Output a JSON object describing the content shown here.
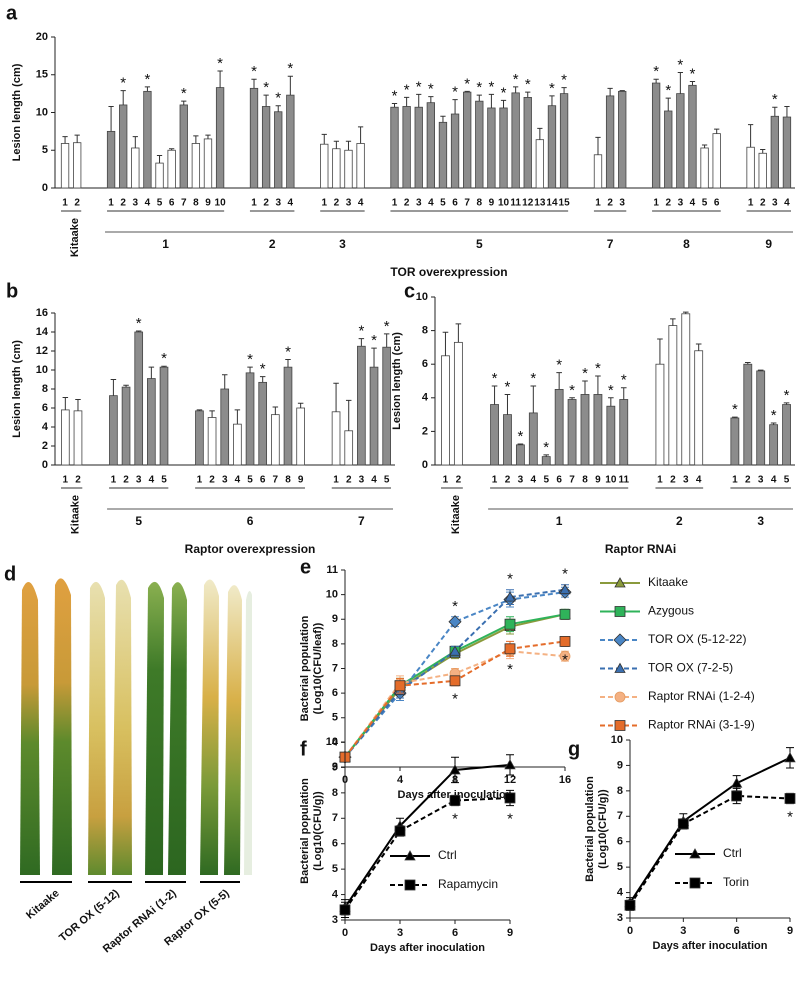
{
  "photo": {
    "panel": "d",
    "labels": [
      "Kitaake",
      "TOR OX (5-12)",
      "Raptor RNAi (1-2)",
      "Raptor OX (5-5)"
    ]
  },
  "chart_data": [
    {
      "type": "bar",
      "panel": "a",
      "ylabel": "Lesion length (cm)",
      "ylim": [
        0,
        20
      ],
      "yticks": [
        0,
        5,
        10,
        15,
        20
      ],
      "group_axis_label": "TOR overexpression",
      "groups": [
        {
          "name": "Kitaake",
          "categories": [
            "1",
            "2"
          ],
          "values": [
            5.9,
            6.0
          ],
          "errors": [
            0.9,
            1.0
          ],
          "colors": [
            "#ffffff",
            "#ffffff"
          ],
          "annotations": [
            null,
            null
          ]
        },
        {
          "name": "1",
          "categories": [
            "1",
            "2",
            "3",
            "4",
            "5",
            "6",
            "7",
            "8",
            "9",
            "10"
          ],
          "values": [
            7.5,
            11.0,
            5.3,
            12.8,
            3.3,
            5.0,
            11.0,
            5.9,
            6.5,
            13.3
          ],
          "errors": [
            3.3,
            1.9,
            1.5,
            0.6,
            1.0,
            0.2,
            0.5,
            1.0,
            0.5,
            2.2
          ],
          "colors": [
            "#8c8c8c",
            "#8c8c8c",
            "#ffffff",
            "#8c8c8c",
            "#ffffff",
            "#ffffff",
            "#8c8c8c",
            "#ffffff",
            "#ffffff",
            "#8c8c8c"
          ],
          "annotations": [
            null,
            "*",
            null,
            "*",
            null,
            null,
            "*",
            null,
            null,
            "*"
          ]
        },
        {
          "name": "2",
          "categories": [
            "1",
            "2",
            "3",
            "4"
          ],
          "values": [
            13.2,
            10.8,
            10.1,
            12.3
          ],
          "errors": [
            1.2,
            1.5,
            0.8,
            2.5
          ],
          "colors": [
            "#8c8c8c",
            "#8c8c8c",
            "#8c8c8c",
            "#8c8c8c"
          ],
          "annotations": [
            "*",
            "*",
            "*",
            "*"
          ]
        },
        {
          "name": "3",
          "categories": [
            "1",
            "2",
            "3",
            "4"
          ],
          "values": [
            5.8,
            5.2,
            5.0,
            5.9
          ],
          "errors": [
            1.3,
            1.0,
            1.2,
            2.2
          ],
          "colors": [
            "#ffffff",
            "#ffffff",
            "#ffffff",
            "#ffffff"
          ],
          "annotations": [
            null,
            null,
            null,
            null
          ]
        },
        {
          "name": "5",
          "categories": [
            "1",
            "2",
            "3",
            "4",
            "5",
            "6",
            "7",
            "8",
            "9",
            "10",
            "11",
            "12",
            "13",
            "14",
            "15"
          ],
          "values": [
            10.7,
            10.8,
            10.7,
            11.3,
            8.7,
            9.8,
            12.7,
            11.5,
            10.6,
            10.6,
            12.6,
            12.0,
            6.4,
            10.9,
            12.5
          ],
          "errors": [
            0.5,
            1.2,
            1.7,
            0.8,
            0.8,
            1.9,
            0.1,
            0.8,
            1.8,
            1.0,
            0.8,
            0.7,
            1.5,
            1.3,
            0.8
          ],
          "colors": [
            "#8c8c8c",
            "#8c8c8c",
            "#8c8c8c",
            "#8c8c8c",
            "#8c8c8c",
            "#8c8c8c",
            "#8c8c8c",
            "#8c8c8c",
            "#8c8c8c",
            "#8c8c8c",
            "#8c8c8c",
            "#8c8c8c",
            "#ffffff",
            "#8c8c8c",
            "#8c8c8c"
          ],
          "annotations": [
            "*",
            "*",
            "*",
            "*",
            null,
            "*",
            "*",
            "*",
            "*",
            "*",
            "*",
            "*",
            null,
            "*",
            "*"
          ]
        },
        {
          "name": "7",
          "categories": [
            "1",
            "2",
            "3"
          ],
          "values": [
            4.4,
            12.2,
            12.8
          ],
          "errors": [
            2.3,
            1.0,
            0.1
          ],
          "colors": [
            "#ffffff",
            "#8c8c8c",
            "#8c8c8c"
          ],
          "annotations": [
            null,
            null,
            null
          ]
        },
        {
          "name": "8",
          "categories": [
            "1",
            "2",
            "3",
            "4",
            "5",
            "6"
          ],
          "values": [
            13.9,
            10.2,
            12.5,
            13.6,
            5.3,
            7.2
          ],
          "errors": [
            0.5,
            1.7,
            2.8,
            0.5,
            0.4,
            0.6
          ],
          "colors": [
            "#8c8c8c",
            "#8c8c8c",
            "#8c8c8c",
            "#8c8c8c",
            "#ffffff",
            "#ffffff"
          ],
          "annotations": [
            "*",
            "*",
            "*",
            "*",
            null,
            null
          ]
        },
        {
          "name": "9",
          "categories": [
            "1",
            "2",
            "3",
            "4"
          ],
          "values": [
            5.4,
            4.6,
            9.5,
            9.4
          ],
          "errors": [
            3.0,
            0.5,
            1.2,
            1.4
          ],
          "colors": [
            "#ffffff",
            "#ffffff",
            "#8c8c8c",
            "#8c8c8c"
          ],
          "annotations": [
            null,
            null,
            "*",
            null
          ]
        }
      ]
    },
    {
      "type": "bar",
      "panel": "b",
      "ylabel": "Lesion length (cm)",
      "ylim": [
        0,
        16
      ],
      "yticks": [
        0,
        2,
        4,
        6,
        8,
        10,
        12,
        14,
        16
      ],
      "group_axis_label": "Raptor overexpression",
      "groups": [
        {
          "name": "Kitaake",
          "categories": [
            "1",
            "2"
          ],
          "values": [
            5.8,
            5.7
          ],
          "errors": [
            1.3,
            1.2
          ],
          "colors": [
            "#ffffff",
            "#ffffff"
          ],
          "annotations": [
            null,
            null
          ]
        },
        {
          "name": "5",
          "categories": [
            "1",
            "2",
            "3",
            "4",
            "5"
          ],
          "values": [
            7.3,
            8.2,
            14.0,
            9.1,
            10.3
          ],
          "errors": [
            1.7,
            0.2,
            0.1,
            1.2,
            0.1
          ],
          "colors": [
            "#8c8c8c",
            "#8c8c8c",
            "#8c8c8c",
            "#8c8c8c",
            "#8c8c8c"
          ],
          "annotations": [
            null,
            null,
            "*",
            null,
            "*"
          ]
        },
        {
          "name": "6",
          "categories": [
            "1",
            "2",
            "3",
            "4",
            "5",
            "6",
            "7",
            "8",
            "9"
          ],
          "values": [
            5.7,
            5.0,
            8.0,
            4.3,
            9.7,
            8.7,
            5.3,
            10.3,
            6.0
          ],
          "errors": [
            0.1,
            0.7,
            1.5,
            1.5,
            0.6,
            0.6,
            0.8,
            0.8,
            0.5
          ],
          "colors": [
            "#8c8c8c",
            "#ffffff",
            "#8c8c8c",
            "#ffffff",
            "#8c8c8c",
            "#8c8c8c",
            "#ffffff",
            "#8c8c8c",
            "#ffffff"
          ],
          "annotations": [
            null,
            null,
            null,
            null,
            "*",
            "*",
            null,
            "*",
            null
          ]
        },
        {
          "name": "7",
          "categories": [
            "1",
            "2",
            "3",
            "4",
            "5"
          ],
          "values": [
            5.6,
            3.6,
            12.5,
            10.3,
            12.4
          ],
          "errors": [
            3.0,
            3.2,
            0.8,
            2.0,
            1.4
          ],
          "colors": [
            "#ffffff",
            "#ffffff",
            "#8c8c8c",
            "#8c8c8c",
            "#8c8c8c"
          ],
          "annotations": [
            null,
            null,
            "*",
            "*",
            "*"
          ]
        }
      ]
    },
    {
      "type": "bar",
      "panel": "c",
      "ylabel": "Lesion length (cm)",
      "ylim": [
        0,
        10
      ],
      "yticks": [
        0,
        2,
        4,
        6,
        8,
        10
      ],
      "group_axis_label": "Raptor RNAi",
      "groups": [
        {
          "name": "Kitaake",
          "categories": [
            "1",
            "2"
          ],
          "values": [
            6.5,
            7.3
          ],
          "errors": [
            1.4,
            1.1
          ],
          "colors": [
            "#ffffff",
            "#ffffff"
          ],
          "annotations": [
            null,
            null
          ]
        },
        {
          "name": "1",
          "categories": [
            "1",
            "2",
            "3",
            "4",
            "5",
            "6",
            "7",
            "8",
            "9",
            "10",
            "11"
          ],
          "values": [
            3.6,
            3.0,
            1.2,
            3.1,
            0.5,
            4.5,
            3.9,
            4.2,
            4.2,
            3.5,
            3.9
          ],
          "errors": [
            1.1,
            1.2,
            0.05,
            1.6,
            0.1,
            1.0,
            0.1,
            0.8,
            1.1,
            0.5,
            0.7
          ],
          "colors": [
            "#8c8c8c",
            "#8c8c8c",
            "#8c8c8c",
            "#8c8c8c",
            "#8c8c8c",
            "#8c8c8c",
            "#8c8c8c",
            "#8c8c8c",
            "#8c8c8c",
            "#8c8c8c",
            "#8c8c8c"
          ],
          "annotations": [
            "*",
            "*",
            "*",
            "*",
            "*",
            "*",
            "*",
            "*",
            "*",
            "*",
            "*"
          ]
        },
        {
          "name": "2",
          "categories": [
            "1",
            "2",
            "3",
            "4"
          ],
          "values": [
            6.0,
            8.3,
            9.0,
            6.8
          ],
          "errors": [
            1.5,
            0.4,
            0.1,
            0.4
          ],
          "colors": [
            "#ffffff",
            "#ffffff",
            "#ffffff",
            "#ffffff"
          ],
          "annotations": [
            null,
            null,
            null,
            null
          ]
        },
        {
          "name": "3",
          "categories": [
            "1",
            "2",
            "3",
            "4",
            "5"
          ],
          "values": [
            2.8,
            6.0,
            5.6,
            2.4,
            3.6
          ],
          "errors": [
            0.05,
            0.1,
            0.05,
            0.1,
            0.1
          ],
          "colors": [
            "#8c8c8c",
            "#8c8c8c",
            "#8c8c8c",
            "#8c8c8c",
            "#8c8c8c"
          ],
          "annotations": [
            "*",
            null,
            null,
            "*",
            "*"
          ]
        }
      ]
    },
    {
      "type": "line",
      "panel": "e",
      "xlabel": "Days after inoculation",
      "ylabel": [
        "Bacterial population",
        "(Log10(CFU/leaf))"
      ],
      "x": [
        0,
        4,
        8,
        12,
        16
      ],
      "xlim": [
        0,
        16
      ],
      "xticks": [
        0,
        4,
        8,
        12,
        16
      ],
      "ylim": [
        3,
        11
      ],
      "yticks": [
        3,
        4,
        5,
        6,
        7,
        8,
        9,
        10,
        11
      ],
      "legend": "right",
      "series": [
        {
          "name": "Kitaake",
          "color": "#8a9a3c",
          "marker": "triangle",
          "dash": false,
          "values": [
            3.4,
            6.2,
            7.6,
            8.7,
            9.2
          ],
          "errors": [
            0.1,
            0.3,
            0.2,
            0.3,
            0.2
          ],
          "annotations": [
            null,
            null,
            null,
            null,
            null
          ]
        },
        {
          "name": "Azygous",
          "color": "#2fb35a",
          "marker": "square",
          "dash": false,
          "values": [
            3.4,
            6.3,
            7.7,
            8.8,
            9.2
          ],
          "errors": [
            0.1,
            0.3,
            0.2,
            0.3,
            0.2
          ],
          "annotations": [
            null,
            null,
            null,
            null,
            null
          ]
        },
        {
          "name": "TOR OX (5-12-22)",
          "color": "#4a86c5",
          "marker": "diamond",
          "dash": true,
          "values": [
            3.4,
            6.0,
            8.9,
            9.8,
            10.1
          ],
          "errors": [
            0.1,
            0.3,
            0.2,
            0.3,
            0.2
          ],
          "annotations": [
            null,
            null,
            "*",
            null,
            null
          ]
        },
        {
          "name": "TOR OX  (7-2-5)",
          "color": "#3a6fb0",
          "marker": "triangle",
          "dash": true,
          "values": [
            3.4,
            6.1,
            7.7,
            9.9,
            10.2
          ],
          "errors": [
            0.1,
            0.3,
            0.2,
            0.3,
            0.2
          ],
          "annotations": [
            null,
            null,
            null,
            "*",
            "*"
          ]
        },
        {
          "name": "Raptor RNAi (1-2-4)",
          "color": "#f4b183",
          "marker": "circle",
          "dash": true,
          "values": [
            3.4,
            6.4,
            6.8,
            7.7,
            7.5
          ],
          "errors": [
            0.1,
            0.3,
            0.2,
            0.3,
            0.2
          ],
          "annotations": [
            null,
            null,
            null,
            null,
            null
          ]
        },
        {
          "name": "Raptor RNAi (3-1-9)",
          "color": "#e46c2a",
          "marker": "square",
          "dash": true,
          "values": [
            3.4,
            6.3,
            6.5,
            7.8,
            8.1
          ],
          "errors": [
            0.1,
            0.3,
            0.2,
            0.3,
            0.2
          ],
          "annotations": [
            null,
            null,
            "*",
            "*",
            "*"
          ]
        }
      ]
    },
    {
      "type": "line",
      "panel": "f",
      "xlabel": "Days after inoculation",
      "ylabel": [
        "Bacterial population",
        "(Log10(CFU/g))"
      ],
      "x": [
        0,
        3,
        6,
        9
      ],
      "xlim": [
        0,
        9
      ],
      "xticks": [
        0,
        3,
        6,
        9
      ],
      "ylim": [
        3,
        10
      ],
      "yticks": [
        3,
        4,
        5,
        6,
        7,
        8,
        9,
        10
      ],
      "legend": "inside",
      "series": [
        {
          "name": "Ctrl",
          "color": "#000000",
          "marker": "triangle",
          "dash": false,
          "values": [
            3.5,
            6.7,
            8.9,
            9.1
          ],
          "errors": [
            0.3,
            0.3,
            0.5,
            0.4
          ],
          "annotations": [
            null,
            null,
            null,
            null
          ]
        },
        {
          "name": "Rapamycin",
          "color": "#000000",
          "marker": "square",
          "dash": true,
          "values": [
            3.4,
            6.5,
            7.7,
            7.8
          ],
          "errors": [
            0.3,
            0.2,
            0.2,
            0.3
          ],
          "annotations": [
            null,
            null,
            "*",
            "*"
          ]
        }
      ]
    },
    {
      "type": "line",
      "panel": "g",
      "xlabel": "Days after inoculation",
      "ylabel": [
        "Bacterial population",
        "(Log10(CFU/g))"
      ],
      "x": [
        0,
        3,
        6,
        9
      ],
      "xlim": [
        0,
        9
      ],
      "xticks": [
        0,
        3,
        6,
        9
      ],
      "ylim": [
        3,
        10
      ],
      "yticks": [
        3,
        4,
        5,
        6,
        7,
        8,
        9,
        10
      ],
      "legend": "inside",
      "series": [
        {
          "name": "Ctrl",
          "color": "#000000",
          "marker": "triangle",
          "dash": false,
          "values": [
            3.6,
            6.8,
            8.3,
            9.3
          ],
          "errors": [
            0.2,
            0.3,
            0.3,
            0.4
          ],
          "annotations": [
            null,
            null,
            null,
            null
          ]
        },
        {
          "name": "Torin",
          "color": "#000000",
          "marker": "square",
          "dash": true,
          "values": [
            3.5,
            6.7,
            7.8,
            7.7
          ],
          "errors": [
            0.2,
            0.2,
            0.3,
            0.2
          ],
          "annotations": [
            null,
            null,
            null,
            "*"
          ]
        }
      ]
    }
  ]
}
